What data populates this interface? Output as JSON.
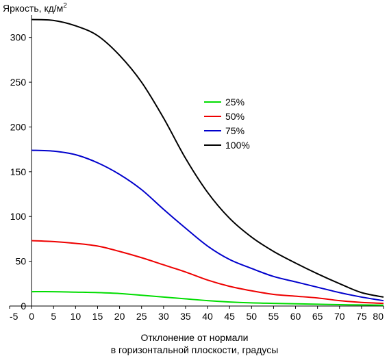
{
  "chart_data": {
    "type": "line",
    "title": "",
    "ylabel": "Яркость, кд/м",
    "ylabel_superscript": "2",
    "xlabel": [
      "Отклонение от нормали",
      "в горизонтальной плоскости, градусы"
    ],
    "xlim": [
      -5,
      80
    ],
    "ylim": [
      0,
      325
    ],
    "xticks": [
      -5,
      0,
      5,
      10,
      15,
      20,
      25,
      30,
      35,
      40,
      45,
      50,
      55,
      60,
      65,
      70,
      75,
      80
    ],
    "yticks": [
      0,
      50,
      100,
      150,
      200,
      250,
      300
    ],
    "grid": false,
    "legend_position": "upper-middle",
    "x": [
      0,
      5,
      10,
      15,
      20,
      25,
      30,
      35,
      40,
      45,
      50,
      55,
      60,
      65,
      70,
      75,
      80
    ],
    "series": [
      {
        "name": "25%",
        "color": "#00dd00",
        "values": [
          16,
          16,
          15.5,
          15,
          14,
          12,
          10,
          8,
          6,
          4.5,
          3.5,
          3,
          2.5,
          2,
          1.5,
          1.2,
          1
        ]
      },
      {
        "name": "50%",
        "color": "#ee0000",
        "values": [
          73,
          72,
          70,
          67,
          61,
          54,
          46,
          38,
          29,
          22,
          17,
          13,
          11,
          9,
          6,
          4,
          3
        ]
      },
      {
        "name": "75%",
        "color": "#0000cc",
        "values": [
          174,
          173,
          169,
          160,
          147,
          130,
          108,
          87,
          67,
          52,
          42,
          33,
          27,
          21,
          15,
          10,
          6
        ]
      },
      {
        "name": "100%",
        "color": "#000000",
        "values": [
          320,
          319,
          313,
          302,
          280,
          250,
          210,
          165,
          127,
          98,
          77,
          61,
          48,
          36,
          25,
          15,
          10
        ]
      }
    ]
  }
}
